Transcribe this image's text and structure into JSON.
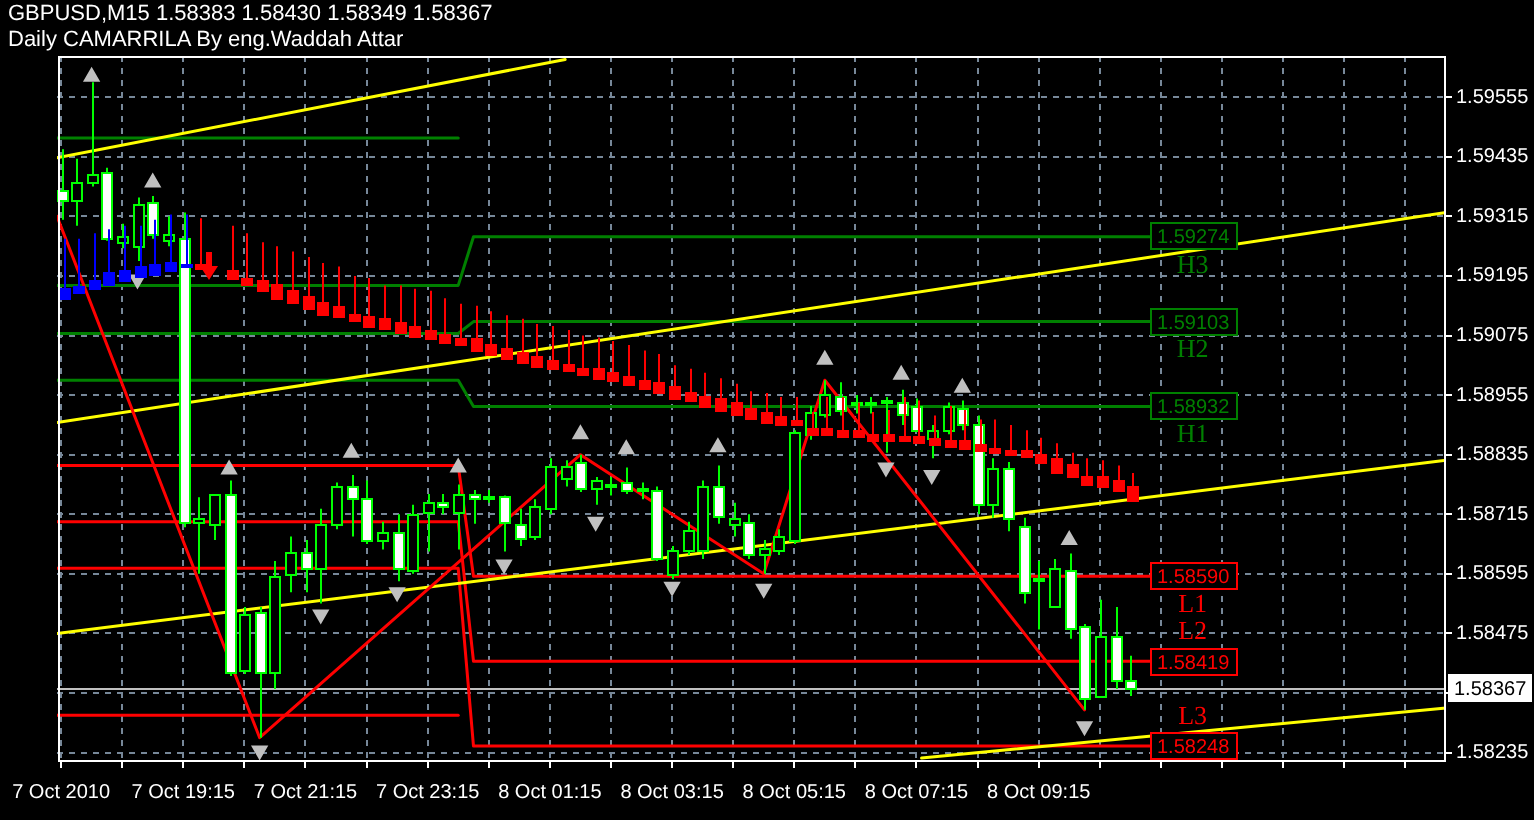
{
  "chart_data": {
    "type": "candlestick",
    "title": "GBPUSD,M15 1.58383 1.58430 1.58349 1.58367",
    "subtitle": "Daily CAMARRILA By eng.Waddah Attar",
    "x": [
      "2010-10-07T17:15",
      "2010-10-07T17:30",
      "2010-10-07T17:45",
      "2010-10-07T18:00",
      "2010-10-07T18:15",
      "2010-10-07T18:30",
      "2010-10-07T18:45",
      "2010-10-07T19:00",
      "2010-10-07T19:15",
      "2010-10-07T19:30",
      "2010-10-07T19:45",
      "2010-10-07T20:00",
      "2010-10-07T20:15",
      "2010-10-07T20:30",
      "2010-10-07T20:45",
      "2010-10-07T21:00",
      "2010-10-07T21:15",
      "2010-10-07T21:30",
      "2010-10-07T21:45",
      "2010-10-07T22:00",
      "2010-10-07T22:15",
      "2010-10-07T22:30",
      "2010-10-07T22:45",
      "2010-10-07T23:00",
      "2010-10-07T23:15",
      "2010-10-07T23:30",
      "2010-10-07T23:45",
      "2010-10-08T00:00",
      "2010-10-08T00:15",
      "2010-10-08T00:30",
      "2010-10-08T00:45",
      "2010-10-08T01:00",
      "2010-10-08T01:15",
      "2010-10-08T01:30",
      "2010-10-08T01:45",
      "2010-10-08T02:00",
      "2010-10-08T02:15",
      "2010-10-08T02:30",
      "2010-10-08T02:45",
      "2010-10-08T03:00",
      "2010-10-08T03:15",
      "2010-10-08T03:30",
      "2010-10-08T03:45",
      "2010-10-08T04:00",
      "2010-10-08T04:15",
      "2010-10-08T04:30",
      "2010-10-08T04:45",
      "2010-10-08T05:00",
      "2010-10-08T05:15",
      "2010-10-08T05:30",
      "2010-10-08T05:45",
      "2010-10-08T06:00",
      "2010-10-08T06:15",
      "2010-10-08T06:30",
      "2010-10-08T06:45",
      "2010-10-08T07:00",
      "2010-10-08T07:15",
      "2010-10-08T07:30",
      "2010-10-08T07:45",
      "2010-10-08T08:00",
      "2010-10-08T08:15",
      "2010-10-08T08:30",
      "2010-10-08T08:45",
      "2010-10-08T09:00",
      "2010-10-08T09:15",
      "2010-10-08T09:30",
      "2010-10-08T09:45",
      "2010-10-08T10:00",
      "2010-10-08T10:15",
      "2010-10-08T10:30",
      "2010-10-08T10:45"
    ],
    "ohlc": [
      [
        1.59368,
        1.5945,
        1.59308,
        1.59349
      ],
      [
        1.59349,
        1.59431,
        1.59296,
        1.59386
      ],
      [
        1.59386,
        1.59585,
        1.59375,
        1.59401
      ],
      [
        1.59405,
        1.59413,
        1.59266,
        1.5927
      ],
      [
        1.59263,
        1.593,
        1.59251,
        1.59274
      ],
      [
        1.59255,
        1.59353,
        1.59225,
        1.59341
      ],
      [
        1.59345,
        1.59356,
        1.5927,
        1.59278
      ],
      [
        1.59266,
        1.59315,
        1.59255,
        1.59278
      ],
      [
        1.5927,
        1.59323,
        1.58689,
        1.587
      ],
      [
        1.587,
        1.58749,
        1.58595,
        1.58708
      ],
      [
        1.58696,
        1.58756,
        1.58663,
        1.58756
      ],
      [
        1.58756,
        1.58783,
        1.58389,
        1.58396
      ],
      [
        1.584,
        1.58528,
        1.58393,
        1.58516
      ],
      [
        1.5852,
        1.58528,
        1.58265,
        1.58396
      ],
      [
        1.58396,
        1.58621,
        1.58363,
        1.58591
      ],
      [
        1.58595,
        1.5867,
        1.58558,
        1.5864
      ],
      [
        1.5864,
        1.58663,
        1.58558,
        1.58606
      ],
      [
        1.58606,
        1.58726,
        1.58535,
        1.58696
      ],
      [
        1.58696,
        1.58779,
        1.58685,
        1.58771
      ],
      [
        1.58771,
        1.58794,
        1.5867,
        1.58749
      ],
      [
        1.58749,
        1.58783,
        1.58655,
        1.58663
      ],
      [
        1.58663,
        1.587,
        1.58644,
        1.58681
      ],
      [
        1.58681,
        1.58715,
        1.5858,
        1.58606
      ],
      [
        1.58603,
        1.58734,
        1.58595,
        1.58715
      ],
      [
        1.58719,
        1.58756,
        1.5864,
        1.58741
      ],
      [
        1.58738,
        1.58756,
        1.58715,
        1.5873
      ],
      [
        1.58719,
        1.58775,
        1.58644,
        1.58756
      ],
      [
        1.58756,
        1.58764,
        1.58696,
        1.58749
      ],
      [
        1.58749,
        1.58764,
        1.58738,
        1.58753
      ],
      [
        1.58753,
        1.58753,
        1.5864,
        1.587
      ],
      [
        1.58696,
        1.58726,
        1.58651,
        1.58666
      ],
      [
        1.5867,
        1.58745,
        1.58663,
        1.5873
      ],
      [
        1.58726,
        1.58828,
        1.58715,
        1.58813
      ],
      [
        1.5879,
        1.58824,
        1.58771,
        1.58813
      ],
      [
        1.5882,
        1.58835,
        1.5876,
        1.58768
      ],
      [
        1.58768,
        1.5879,
        1.58734,
        1.58783
      ],
      [
        1.58771,
        1.5879,
        1.58753,
        1.58775
      ],
      [
        1.58779,
        1.58809,
        1.58756,
        1.58764
      ],
      [
        1.58764,
        1.58779,
        1.58745,
        1.58768
      ],
      [
        1.58764,
        1.58771,
        1.58621,
        1.58625
      ],
      [
        1.58595,
        1.58651,
        1.58584,
        1.58644
      ],
      [
        1.58644,
        1.587,
        1.58633,
        1.58685
      ],
      [
        1.58644,
        1.58783,
        1.58625,
        1.58771
      ],
      [
        1.58771,
        1.58813,
        1.58696,
        1.58711
      ],
      [
        1.58696,
        1.58738,
        1.5867,
        1.58708
      ],
      [
        1.587,
        1.58715,
        1.58625,
        1.58633
      ],
      [
        1.58636,
        1.58663,
        1.58595,
        1.58648
      ],
      [
        1.58644,
        1.58685,
        1.58633,
        1.5867
      ],
      [
        1.58663,
        1.58884,
        1.58655,
        1.5888
      ],
      [
        1.58876,
        1.58933,
        1.58865,
        1.58921
      ],
      [
        1.58918,
        1.58985,
        1.5891,
        1.58959
      ],
      [
        1.58955,
        1.58981,
        1.58914,
        1.58925
      ],
      [
        1.5894,
        1.58955,
        1.58918,
        1.58936
      ],
      [
        1.58936,
        1.58951,
        1.58918,
        1.5894
      ],
      [
        1.5894,
        1.58951,
        1.58839,
        1.58944
      ],
      [
        1.5894,
        1.58966,
        1.58895,
        1.58918
      ],
      [
        1.58933,
        1.58948,
        1.58884,
        1.58884
      ],
      [
        1.58869,
        1.58895,
        1.58828,
        1.58884
      ],
      [
        1.58884,
        1.5894,
        1.58876,
        1.58933
      ],
      [
        1.58929,
        1.58944,
        1.58884,
        1.58895
      ],
      [
        1.58895,
        1.58914,
        1.58715,
        1.58734
      ],
      [
        1.58734,
        1.58828,
        1.58708,
        1.58809
      ],
      [
        1.58809,
        1.5882,
        1.58681,
        1.58708
      ],
      [
        1.58693,
        1.58708,
        1.58535,
        1.58558
      ],
      [
        1.58584,
        1.58621,
        1.58483,
        1.58588
      ],
      [
        1.58531,
        1.58625,
        1.58528,
        1.58606
      ],
      [
        1.58603,
        1.58636,
        1.58464,
        1.58486
      ],
      [
        1.5849,
        1.58494,
        1.58321,
        1.58344
      ],
      [
        1.58348,
        1.58543,
        1.58348,
        1.58468
      ],
      [
        1.58468,
        1.58528,
        1.58363,
        1.58381
      ],
      [
        1.58383,
        1.5843,
        1.58349,
        1.58367
      ]
    ],
    "color": "#00ff00",
    "colors": [
      "#ffffff",
      "#000000",
      "#000000",
      "#ffffff",
      "#000000",
      "#000000",
      "#ffffff",
      "#000000",
      "#ffffff",
      "#000000",
      "#000000",
      "#ffffff",
      "#000000",
      "#ffffff",
      "#000000",
      "#000000",
      "#ffffff",
      "#000000",
      "#000000",
      "#ffffff",
      "#ffffff",
      "#000000",
      "#ffffff",
      "#000000",
      "#000000",
      "#ffffff",
      "#000000",
      "#ffffff",
      "#000000",
      "#ffffff",
      "#ffffff",
      "#000000",
      "#000000",
      "#000000",
      "#ffffff",
      "#000000",
      "#000000",
      "#ffffff",
      "#000000",
      "#ffffff",
      "#000000",
      "#000000",
      "#000000",
      "#ffffff",
      "#000000",
      "#ffffff",
      "#000000",
      "#000000",
      "#000000",
      "#000000",
      "#000000",
      "#ffffff",
      "#ffffff",
      "#000000",
      "#000000",
      "#ffffff",
      "#ffffff",
      "#000000",
      "#000000",
      "#ffffff",
      "#ffffff",
      "#000000",
      "#ffffff",
      "#ffffff",
      "#000000",
      "#000000",
      "#ffffff",
      "#ffffff",
      "#000000",
      "#ffffff",
      "#ffffff"
    ],
    "xlim": [
      "2010-10-07T17:11",
      "2010-10-08T15:55"
    ],
    "xticks": [
      {
        "value": "2010-10-07T17:15",
        "label": "7 Oct 2010"
      },
      {
        "value": "2010-10-07T18:15",
        "label": null
      },
      {
        "value": "2010-10-07T19:15",
        "label": "7 Oct 19:15"
      },
      {
        "value": "2010-10-07T20:15",
        "label": null
      },
      {
        "value": "2010-10-07T21:15",
        "label": "7 Oct 21:15"
      },
      {
        "value": "2010-10-07T22:15",
        "label": null
      },
      {
        "value": "2010-10-07T23:15",
        "label": "7 Oct 23:15"
      },
      {
        "value": "2010-10-08T00:15",
        "label": null
      },
      {
        "value": "2010-10-08T01:15",
        "label": "8 Oct 01:15"
      },
      {
        "value": "2010-10-08T02:15",
        "label": null
      },
      {
        "value": "2010-10-08T03:15",
        "label": "8 Oct 03:15"
      },
      {
        "value": "2010-10-08T04:15",
        "label": null
      },
      {
        "value": "2010-10-08T05:15",
        "label": "8 Oct 05:15"
      },
      {
        "value": "2010-10-08T06:15",
        "label": null
      },
      {
        "value": "2010-10-08T07:15",
        "label": "8 Oct 07:15"
      },
      {
        "value": "2010-10-08T08:15",
        "label": null
      },
      {
        "value": "2010-10-08T09:15",
        "label": "8 Oct 09:15"
      },
      {
        "value": "2010-10-08T10:15",
        "label": null
      },
      {
        "value": "2010-10-08T11:15",
        "label": null
      },
      {
        "value": "2010-10-08T12:15",
        "label": null
      },
      {
        "value": "2010-10-08T13:15",
        "label": null
      },
      {
        "value": "2010-10-08T14:15",
        "label": null
      },
      {
        "value": "2010-10-08T15:15",
        "label": null
      }
    ],
    "ylim": [
      1.58216,
      1.59638
    ],
    "yticks": [
      1.58235,
      {
        "value": 1.58355,
        "label": null
      },
      1.58475,
      1.58595,
      1.58715,
      1.58835,
      1.58955,
      1.59075,
      1.59195,
      1.59315,
      1.59435,
      1.59555
    ],
    "grid": true,
    "legend": "right",
    "series": [
      {
        "type": "candlestick",
        "colors": [
          "#0000ff",
          "#0000ff",
          "#0000ff",
          "#0000ff",
          "#0000ff",
          "#0000ff",
          "#0000ff",
          "#0000ff",
          "#0000ff",
          "#ff0000",
          null,
          "#ff0000",
          "#ff0000",
          "#ff0000",
          "#ff0000",
          "#ff0000",
          "#ff0000",
          "#ff0000",
          "#ff0000",
          "#ff0000",
          "#ff0000",
          "#ff0000",
          "#ff0000",
          "#ff0000",
          "#ff0000",
          "#ff0000",
          "#ff0000",
          "#ff0000",
          "#ff0000",
          "#ff0000",
          "#ff0000",
          "#ff0000",
          "#ff0000",
          "#ff0000",
          "#ff0000",
          "#ff0000",
          "#ff0000",
          "#ff0000",
          "#ff0000",
          "#ff0000",
          "#ff0000",
          "#ff0000",
          "#ff0000",
          "#ff0000",
          "#ff0000",
          "#ff0000",
          "#ff0000",
          "#ff0000",
          "#ff0000",
          "#ff0000",
          "#ff0000",
          "#ff0000",
          "#ff0000",
          "#ff0000",
          "#ff0000",
          "#ff0000",
          "#ff0000",
          "#ff0000",
          "#ff0000",
          "#ff0000",
          "#ff0000",
          "#ff0000",
          "#ff0000",
          "#ff0000",
          "#ff0000",
          "#ff0000",
          "#ff0000",
          "#ff0000",
          "#ff0000",
          "#ff0000",
          "#ff0000"
        ],
        "ohlc": [
          [
            1.59169,
            1.5927,
            1.5915,
            1.5915
          ],
          [
            1.59176,
            1.5927,
            1.59161,
            1.59161
          ],
          [
            1.59188,
            1.59281,
            1.59169,
            1.59169
          ],
          [
            1.59203,
            1.59289,
            1.5918,
            1.5918
          ],
          [
            1.59206,
            1.59296,
            1.59188,
            1.59188
          ],
          [
            1.59214,
            1.59296,
            1.59195,
            1.59195
          ],
          [
            1.59218,
            1.59308,
            1.59199,
            1.59199
          ],
          [
            1.59225,
            1.59319,
            1.59206,
            1.59206
          ],
          [
            1.59221,
            1.59319,
            1.59214,
            1.59214
          ],
          [
            1.59221,
            1.59311,
            1.5921,
            1.5921
          ],
          null,
          [
            1.59206,
            1.59296,
            1.59191,
            1.59191
          ],
          [
            1.59191,
            1.59281,
            1.5918,
            1.5918
          ],
          [
            1.59188,
            1.59263,
            1.59165,
            1.59165
          ],
          [
            1.5918,
            1.59255,
            1.5915,
            1.5915
          ],
          [
            1.59165,
            1.59244,
            1.59143,
            1.59143
          ],
          [
            1.59154,
            1.59233,
            1.59131,
            1.59131
          ],
          [
            1.59143,
            1.59221,
            1.5912,
            1.5912
          ],
          [
            1.59135,
            1.59214,
            1.59113,
            1.59113
          ],
          [
            1.5912,
            1.59195,
            1.59105,
            1.59105
          ],
          [
            1.59113,
            1.59191,
            1.59094,
            1.59094
          ],
          [
            1.59109,
            1.59176,
            1.5909,
            1.5909
          ],
          [
            1.59101,
            1.59176,
            1.59083,
            1.59083
          ],
          [
            1.59094,
            1.59169,
            1.59075,
            1.59075
          ],
          [
            1.59086,
            1.59165,
            1.59068,
            1.59068
          ],
          [
            1.59079,
            1.5915,
            1.5906,
            1.5906
          ],
          [
            1.59071,
            1.59139,
            1.59056,
            1.59056
          ],
          [
            1.59068,
            1.59135,
            1.59045,
            1.59045
          ],
          [
            1.59056,
            1.59124,
            1.59038,
            1.59038
          ],
          [
            1.59049,
            1.59116,
            1.5903,
            1.5903
          ],
          [
            1.59041,
            1.59109,
            1.59023,
            1.59023
          ],
          [
            1.59034,
            1.59098,
            1.59015,
            1.59015
          ],
          [
            1.59026,
            1.59094,
            1.59008,
            1.59008
          ],
          [
            1.59019,
            1.59086,
            1.59004,
            1.59004
          ],
          [
            1.59011,
            1.59075,
            1.58996,
            1.58996
          ],
          [
            1.59008,
            1.59071,
            1.58989,
            1.58989
          ],
          [
            1.59,
            1.59064,
            1.58985,
            1.58985
          ],
          [
            1.58993,
            1.59056,
            1.58978,
            1.58978
          ],
          [
            1.58985,
            1.59045,
            1.5897,
            1.5897
          ],
          [
            1.58981,
            1.59038,
            1.58963,
            1.58963
          ],
          [
            1.58974,
            1.59015,
            1.58951,
            1.58951
          ],
          [
            1.58963,
            1.59008,
            1.58944,
            1.58944
          ],
          [
            1.58955,
            1.59,
            1.58933,
            1.58933
          ],
          [
            1.58948,
            1.58989,
            1.58925,
            1.58925
          ],
          [
            1.5894,
            1.58978,
            1.58918,
            1.58918
          ],
          [
            1.58929,
            1.58963,
            1.5891,
            1.5891
          ],
          [
            1.58921,
            1.58959,
            1.58899,
            1.58899
          ],
          [
            1.58914,
            1.58951,
            1.58895,
            1.58895
          ],
          [
            1.58906,
            1.58951,
            1.58895,
            1.58895
          ],
          [
            1.58888,
            1.58921,
            1.58876,
            1.58876
          ],
          [
            1.58888,
            1.58951,
            1.58876,
            1.58876
          ],
          [
            1.58884,
            1.58951,
            1.58873,
            1.58873
          ],
          [
            1.58884,
            1.5894,
            1.58873,
            1.58873
          ],
          [
            1.58876,
            1.58921,
            1.58865,
            1.58865
          ],
          [
            1.58876,
            1.58925,
            1.58865,
            1.58865
          ],
          [
            1.58873,
            1.58951,
            1.58865,
            1.58865
          ],
          [
            1.58873,
            1.58944,
            1.58861,
            1.58861
          ],
          [
            1.58869,
            1.58914,
            1.58858,
            1.58858
          ],
          [
            1.58865,
            1.58933,
            1.58854,
            1.58854
          ],
          [
            1.58865,
            1.58925,
            1.5885,
            1.5885
          ],
          [
            1.58858,
            1.58906,
            1.58846,
            1.58846
          ],
          [
            1.5885,
            1.58906,
            1.58839,
            1.58839
          ],
          [
            1.58846,
            1.58895,
            1.58835,
            1.58835
          ],
          [
            1.58846,
            1.58884,
            1.58831,
            1.58831
          ],
          [
            1.58835,
            1.58869,
            1.5882,
            1.5882
          ],
          [
            1.58828,
            1.58858,
            1.58801,
            1.58801
          ],
          [
            1.58816,
            1.58839,
            1.58794,
            1.58794
          ],
          [
            1.58794,
            1.58828,
            1.58775,
            1.58775
          ],
          [
            1.58794,
            1.58824,
            1.58771,
            1.58771
          ],
          [
            1.58783,
            1.58813,
            1.58764,
            1.58764
          ],
          [
            1.58771,
            1.58798,
            1.58745,
            1.58745
          ]
        ]
      },
      {
        "type": "line",
        "color": "#008000",
        "x": [
          "2010-10-07T17:11",
          "2010-10-07T23:45"
        ],
        "values": [
          1.59473,
          1.59473
        ]
      },
      {
        "name": "H3",
        "type": "line",
        "color": "#008000",
        "x": [
          "2010-10-07T17:11",
          "2010-10-07T23:45",
          "2010-10-08T00:00",
          "2010-10-08T11:04"
        ],
        "values": [
          1.59176,
          1.59176,
          1.59274,
          1.59274
        ],
        "value_labels": [
          null,
          null,
          null,
          "1.59274"
        ]
      },
      {
        "name": "H2",
        "type": "line",
        "color": "#008000",
        "x": [
          "2010-10-07T17:11",
          "2010-10-07T23:45",
          "2010-10-08T00:00",
          "2010-10-08T11:04"
        ],
        "values": [
          1.59079,
          1.59079,
          1.59103,
          1.59103
        ],
        "value_labels": [
          null,
          null,
          null,
          "1.59103"
        ]
      },
      {
        "name": "H1",
        "type": "line",
        "color": "#008000",
        "x": [
          "2010-10-07T17:11",
          "2010-10-07T23:45",
          "2010-10-08T00:00",
          "2010-10-08T11:04"
        ],
        "values": [
          1.58985,
          1.58985,
          1.58932,
          1.58932
        ],
        "value_labels": [
          null,
          null,
          null,
          "1.58932"
        ]
      },
      {
        "name": "L1",
        "type": "line",
        "color": "#ff0000",
        "x": [
          "2010-10-07T17:11",
          "2010-10-07T23:45",
          "2010-10-08T00:00",
          "2010-10-08T11:04"
        ],
        "values": [
          1.58813,
          1.58813,
          1.5859,
          1.5859
        ],
        "value_labels": [
          null,
          null,
          null,
          "1.58590"
        ]
      },
      {
        "name": "L2",
        "type": "line",
        "color": "#ff0000",
        "x": [
          "2010-10-07T17:11",
          "2010-10-07T23:45",
          "2010-10-08T00:00",
          "2010-10-08T11:04"
        ],
        "values": [
          1.587,
          1.587,
          1.58419,
          1.58419
        ],
        "value_labels": [
          null,
          null,
          null,
          "1.58419"
        ]
      },
      {
        "name": "L3",
        "type": "line",
        "color": "#ff0000",
        "x": [
          "2010-10-07T17:11",
          "2010-10-07T23:45",
          "2010-10-08T00:00",
          "2010-10-08T11:04"
        ],
        "values": [
          1.58606,
          1.58606,
          1.58248,
          1.58248
        ],
        "value_labels": [
          null,
          null,
          null,
          "1.58248"
        ]
      },
      {
        "type": "line",
        "color": "#ff0000",
        "x": [
          "2010-10-07T17:11",
          "2010-10-07T23:45"
        ],
        "values": [
          1.5831,
          1.5831
        ]
      },
      {
        "type": "line",
        "color": "#ffff00",
        "x": [
          "2010-10-07T17:11",
          "2010-10-08T01:30"
        ],
        "values": [
          1.59433,
          1.59631
        ]
      },
      {
        "type": "line",
        "color": "#ffff00",
        "x": [
          "2010-10-07T17:11",
          "2010-10-08T15:55"
        ],
        "values": [
          1.589,
          1.59323
        ]
      },
      {
        "type": "line",
        "color": "#ffff00",
        "x": [
          "2010-10-07T17:11",
          "2010-10-08T15:55"
        ],
        "values": [
          1.58475,
          1.58824
        ]
      },
      {
        "type": "line",
        "color": "#ffff00",
        "x": [
          "2010-10-08T07:20",
          "2010-10-08T15:55"
        ],
        "values": [
          1.58224,
          1.58325
        ]
      },
      {
        "type": "line",
        "color": "#ff0000",
        "x": [
          "2010-10-07T17:11",
          "2010-10-07T20:30",
          "2010-10-08T01:45",
          "2010-10-08T04:45",
          "2010-10-08T05:45",
          "2010-10-08T10:00"
        ],
        "values": [
          1.59315,
          1.58265,
          1.58835,
          1.58595,
          1.58985,
          1.58321
        ]
      },
      {
        "type": "scatter",
        "color": "#c0c0c0",
        "marker": "triangle",
        "x": [
          "2010-10-07T17:45",
          "2010-10-07T18:45",
          "2010-10-07T20:00",
          "2010-10-07T22:00",
          "2010-10-07T23:45",
          "2010-10-08T01:45",
          "2010-10-08T02:30",
          "2010-10-08T04:00",
          "2010-10-08T05:45",
          "2010-10-08T07:00",
          "2010-10-08T08:00",
          "2010-10-08T09:45"
        ],
        "values": [
          1.59596,
          1.59383,
          1.58805,
          1.58839,
          1.58809,
          1.58876,
          1.58846,
          1.5885,
          1.59026,
          1.58996,
          1.5897,
          1.58663
        ]
      },
      {
        "type": "scatter",
        "color": "#c0c0c0",
        "marker": "triangle",
        "x": [
          "2010-10-07T18:30",
          "2010-10-07T20:30",
          "2010-10-07T21:30",
          "2010-10-07T22:45",
          "2010-10-08T00:30",
          "2010-10-08T02:00",
          "2010-10-08T03:15",
          "2010-10-08T04:45",
          "2010-10-08T06:45",
          "2010-10-08T07:30",
          "2010-10-08T10:00"
        ],
        "values": [
          1.59188,
          1.58239,
          1.58513,
          1.58558,
          1.58614,
          1.587,
          1.58569,
          1.58565,
          1.58809,
          1.58794,
          1.58288
        ]
      }
    ],
    "ref_lines": [
      {
        "axis": "y",
        "value": 1.58367,
        "label": "1.58367",
        "color": "#c0c0c0"
      }
    ]
  }
}
